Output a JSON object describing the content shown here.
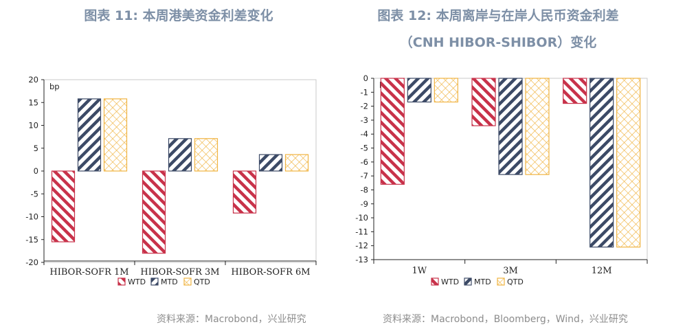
{
  "chart_data": [
    {
      "type": "bar",
      "title": "图表 11: 本周港美资金利差变化",
      "unit": "bp",
      "categories": [
        "HIBOR-SOFR 1M",
        "HIBOR-SOFR 3M",
        "HIBOR-SOFR 6M"
      ],
      "series": [
        {
          "name": "WTD",
          "values": [
            -15.5,
            -18.0,
            -9.2
          ]
        },
        {
          "name": "MTD",
          "values": [
            15.8,
            7.1,
            3.6
          ]
        },
        {
          "name": "QTD",
          "values": [
            15.8,
            7.1,
            3.6
          ]
        }
      ],
      "ylim": [
        -20,
        20
      ],
      "yticks": [
        20,
        15,
        10,
        5,
        0,
        -5,
        -10,
        -15,
        -20
      ],
      "legend": "bottom",
      "grid": false,
      "source": "资料来源：Macrobond，兴业研究"
    },
    {
      "type": "bar",
      "title": "图表 12: 本周离岸与在岸人民币资金利差",
      "subtitle": "（CNH HIBOR-SHIBOR）变化",
      "unit": "bp",
      "categories": [
        "1W",
        "3M",
        "12M"
      ],
      "series": [
        {
          "name": "WTD",
          "values": [
            -7.6,
            -3.4,
            -1.8
          ]
        },
        {
          "name": "MTD",
          "values": [
            -1.7,
            -6.9,
            -12.1
          ]
        },
        {
          "name": "QTD",
          "values": [
            -1.7,
            -6.9,
            -12.1
          ]
        }
      ],
      "ylim": [
        -13,
        0
      ],
      "yticks": [
        0,
        -1,
        -2,
        -3,
        -4,
        -5,
        -6,
        -7,
        -8,
        -9,
        -10,
        -11,
        -12,
        -13
      ],
      "legend": "bottom",
      "grid": false,
      "source": "资料来源：Macrobond，Bloomberg，Wind，兴业研究"
    }
  ],
  "colors": {
    "WTD": "#c8324a",
    "MTD": "#3c4a66",
    "QTD": "#f0b340",
    "title": "#7d8fa6",
    "source": "#8c8c8c"
  }
}
